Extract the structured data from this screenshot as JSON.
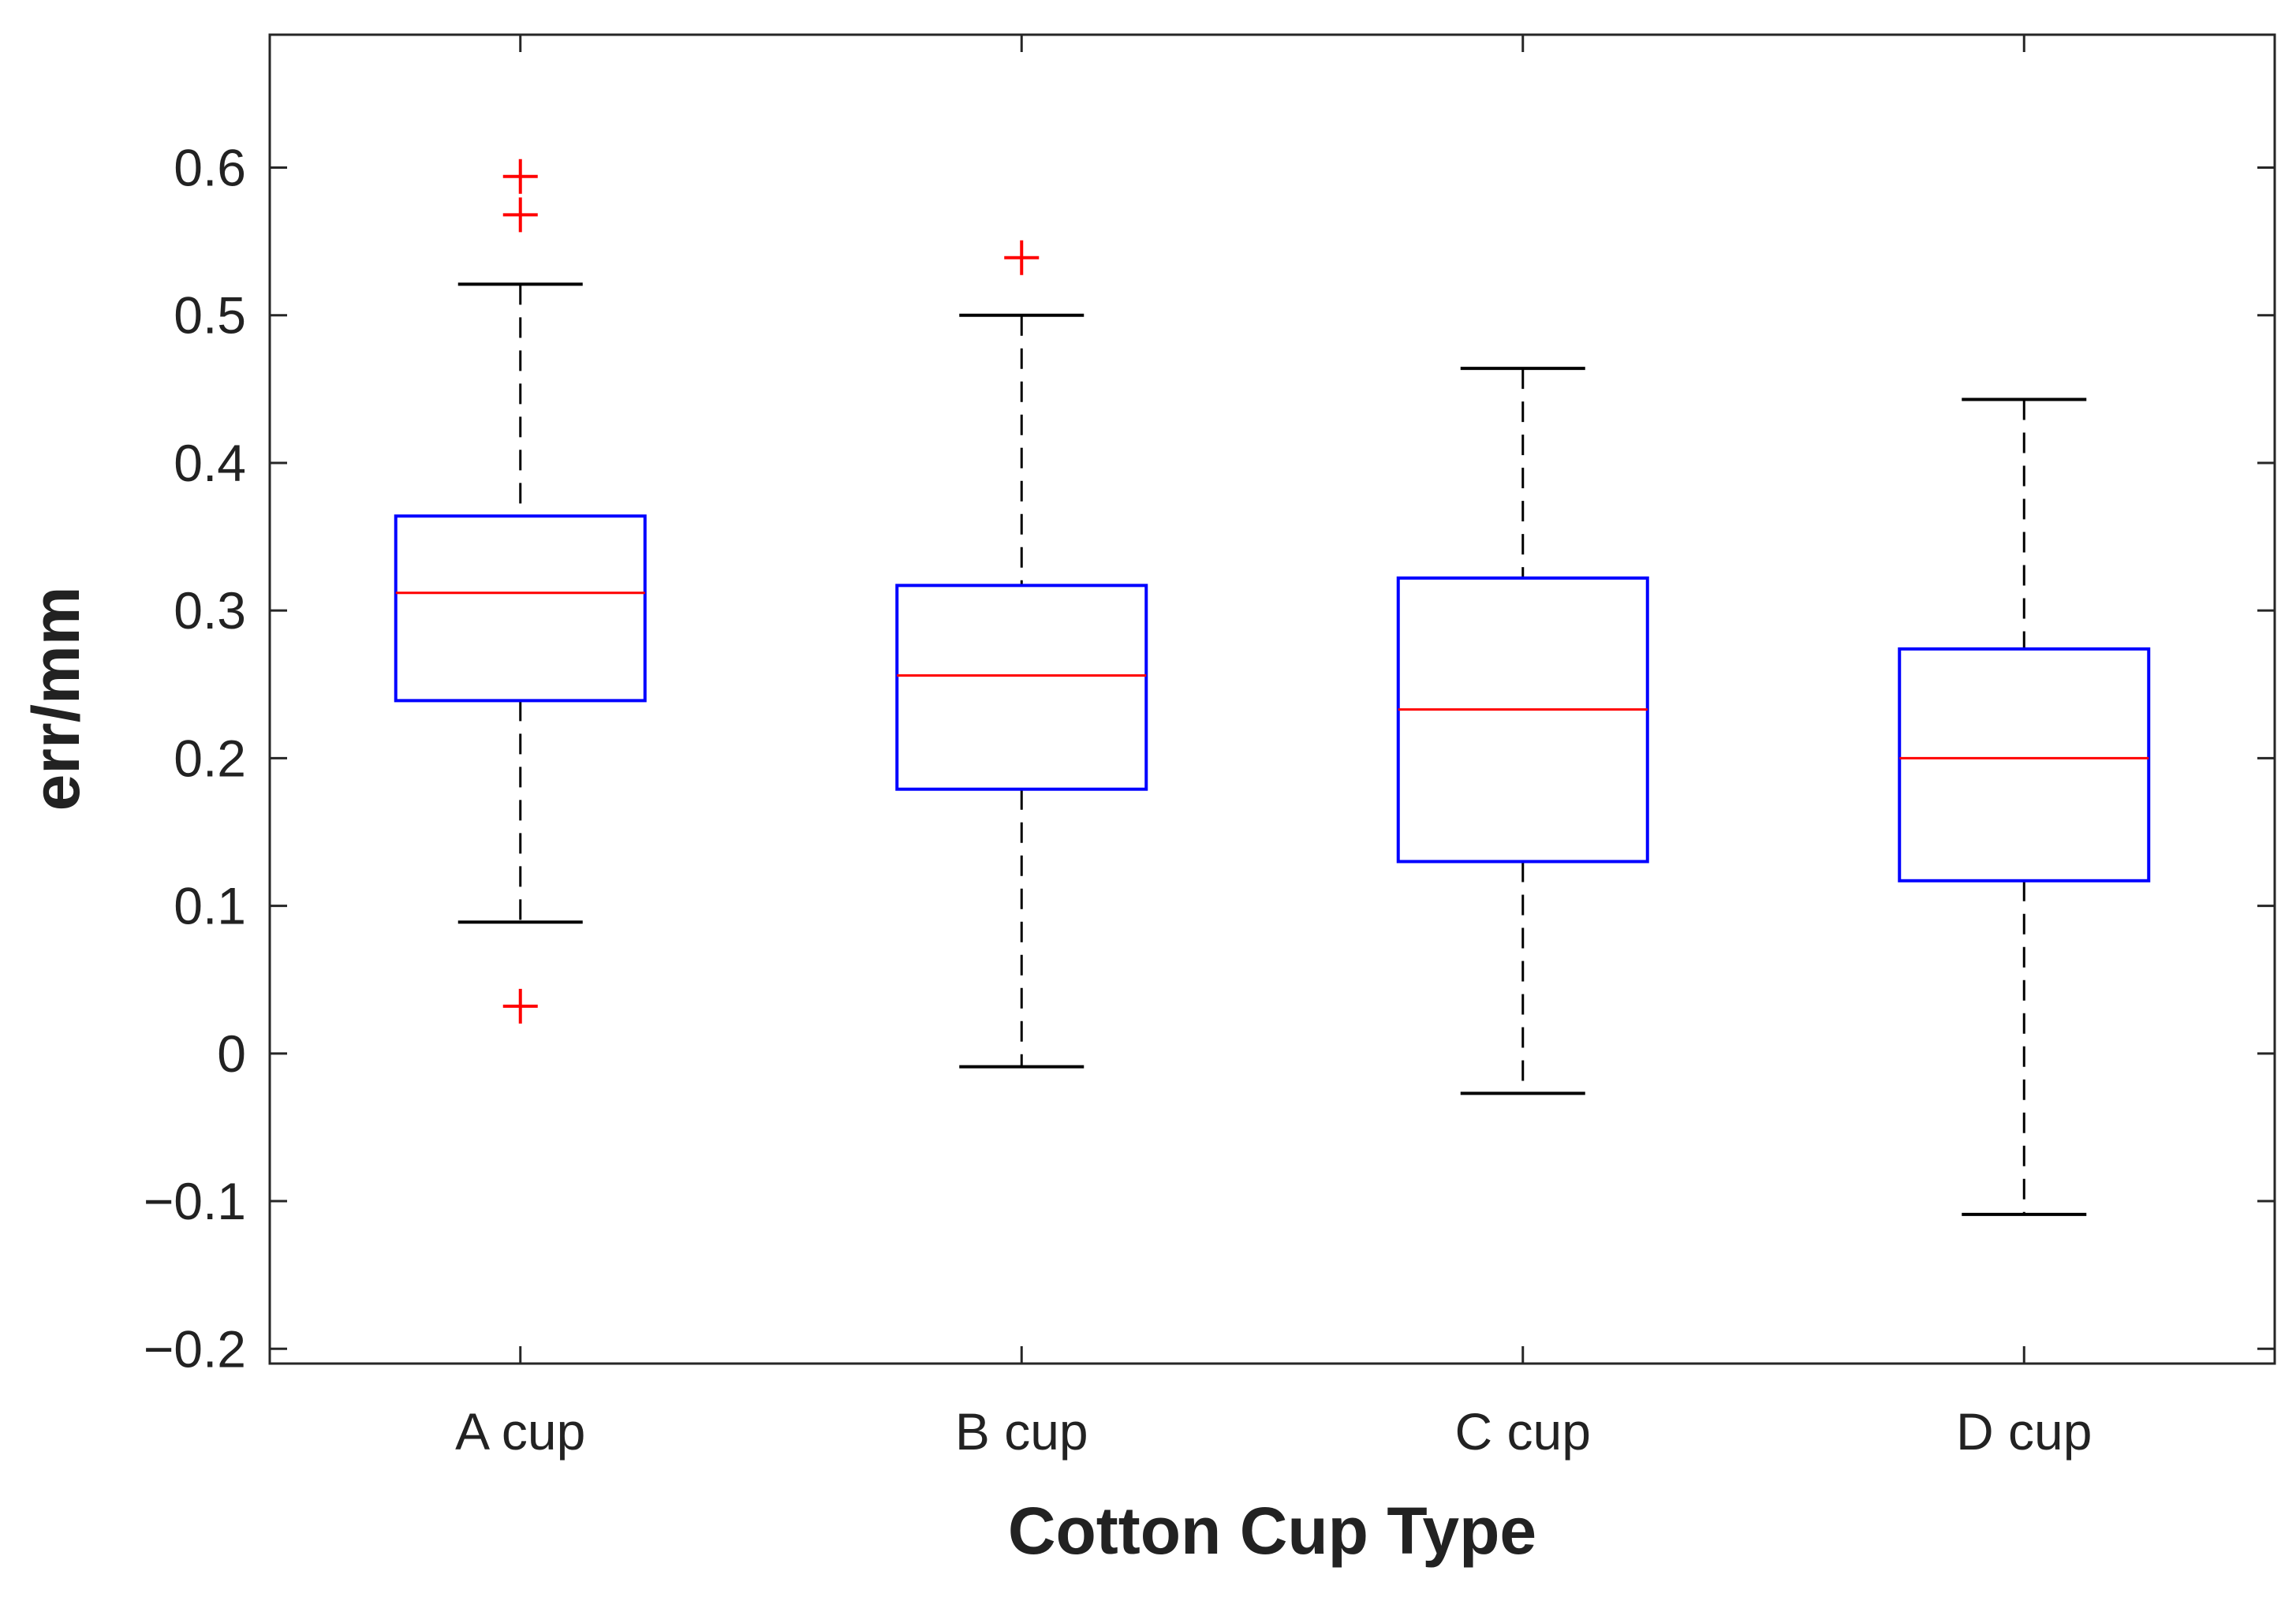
{
  "chart_data": {
    "type": "boxplot",
    "xlabel": "Cotton Cup Type",
    "ylabel": "err/mm",
    "ylim": [
      -0.21,
      0.69
    ],
    "yticks": [
      -0.2,
      -0.1,
      0,
      0.1,
      0.2,
      0.3,
      0.4,
      0.5,
      0.6
    ],
    "ytick_labels": [
      "−0.2",
      "−0.1",
      "0",
      "0.1",
      "0.2",
      "0.3",
      "0.4",
      "0.5",
      "0.6"
    ],
    "categories": [
      "A cup",
      "B cup",
      "C cup",
      "D cup"
    ],
    "boxes": [
      {
        "category": "A cup",
        "whisker_low": 0.089,
        "q1": 0.239,
        "median": 0.312,
        "q3": 0.364,
        "whisker_high": 0.521,
        "outliers": [
          0.032,
          0.568,
          0.594
        ]
      },
      {
        "category": "B cup",
        "whisker_low": -0.009,
        "q1": 0.179,
        "median": 0.256,
        "q3": 0.317,
        "whisker_high": 0.5,
        "outliers": [
          0.539
        ]
      },
      {
        "category": "C cup",
        "whisker_low": -0.027,
        "q1": 0.13,
        "median": 0.233,
        "q3": 0.322,
        "whisker_high": 0.464,
        "outliers": []
      },
      {
        "category": "D cup",
        "whisker_low": -0.109,
        "q1": 0.117,
        "median": 0.2,
        "q3": 0.274,
        "whisker_high": 0.443,
        "outliers": []
      }
    ],
    "colors": {
      "box": "#0000ff",
      "median": "#ff0000",
      "whisker": "#000000",
      "outlier": "#ff0000"
    },
    "grid": false,
    "legend": "none"
  }
}
